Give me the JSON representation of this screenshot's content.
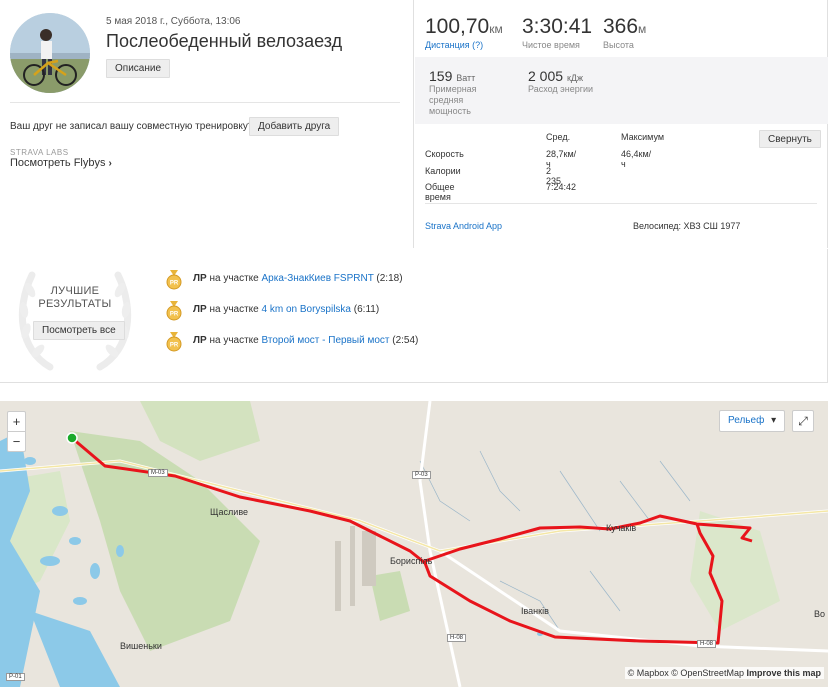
{
  "activity": {
    "date": "5 мая 2018 г., Суббота, 13:06",
    "title": "Послеобеденный велозаезд",
    "description_button": "Описание",
    "friend_prompt": "Ваш друг не записал вашу совместную тренировку?",
    "add_friend_button": "Добавить друга",
    "labs_label": "STRAVA LABS",
    "flyby_link": "Посмотреть Flybys",
    "flyby_chevron": "›"
  },
  "stats": {
    "distance": {
      "value": "100,70",
      "unit": "км",
      "label": "Дистанция (?)"
    },
    "moving_time": {
      "value": "3:30:41",
      "label": "Чистое время"
    },
    "elevation": {
      "value": "366",
      "unit": "м",
      "label": "Высота"
    },
    "power": {
      "value": "159",
      "unit": "Ватт",
      "label": "Примерная средняя мощность"
    },
    "energy": {
      "value": "2 005",
      "unit": "кДж",
      "label": "Расход энергии"
    }
  },
  "table": {
    "col_avg": "Сред.",
    "col_max": "Максимум",
    "collapse_button": "Свернуть",
    "rows": [
      {
        "label": "Скорость",
        "avg": "28,7км/ч",
        "max": "46,4км/ч"
      },
      {
        "label": "Калории",
        "avg": "2 235",
        "max": ""
      },
      {
        "label": "Общее время",
        "avg": "7:24:42",
        "max": ""
      }
    ]
  },
  "device": {
    "app": "Strava Android App",
    "bike": "Велосипед: ХВЗ СШ 1977"
  },
  "achievements": {
    "title_line1": "ЛУЧШИЕ",
    "title_line2": "РЕЗУЛЬТАТЫ",
    "see_all_button": "Посмотреть все",
    "items": [
      {
        "badge": "ЛР",
        "prefix": "на участке",
        "segment": "Арка-ЗнакКиев FSPRNT",
        "time": "(2:18)"
      },
      {
        "badge": "ЛР",
        "prefix": "на участке",
        "segment": "4 km on Boryspilska",
        "time": "(6:11)"
      },
      {
        "badge": "ЛР",
        "prefix": "на участке",
        "segment": "Второй мост - Первый мост",
        "time": "(2:54)"
      }
    ],
    "medal_text": "PR"
  },
  "map": {
    "zoom_in": "+",
    "zoom_out": "−",
    "layer_select": "Рельеф",
    "layer_caret": "▾",
    "fullscreen_icon": "⤢",
    "attribution_mapbox": "© Mapbox",
    "attribution_osm": "© OpenStreetMap",
    "attribution_improve": "Improve this map",
    "towns": [
      "Щасливе",
      "Бориспіль",
      "Іванків",
      "Кучаків",
      "Вишеньки",
      "Во"
    ],
    "roads": [
      "М-03",
      "Р-03",
      "Н-08",
      "Р-01",
      "Н-08"
    ],
    "colors": {
      "route": "#e8141b",
      "start": "#1aaa2a",
      "water": "#7fc4e8",
      "forest": "#c6dbb1"
    }
  }
}
